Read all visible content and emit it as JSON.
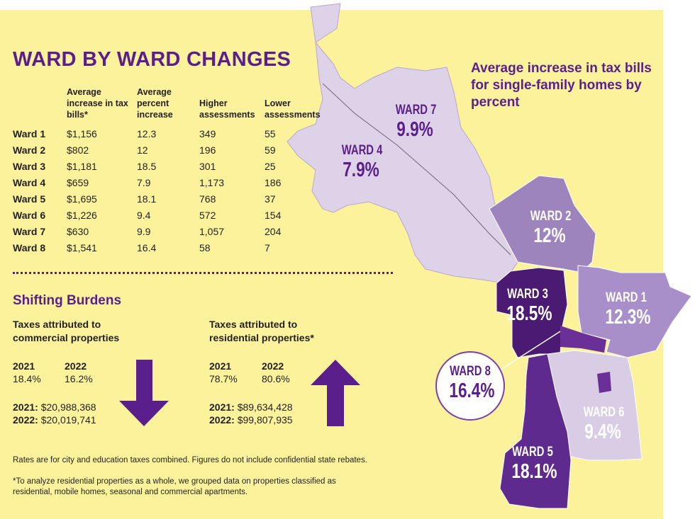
{
  "title": "WARD BY WARD CHANGES",
  "table": {
    "headers": [
      "Average increase in tax bills*",
      "Average percent increase",
      "Higher assessments",
      "Lower assessments"
    ],
    "rows": [
      {
        "ward": "Ward 1",
        "increase": "$1,156",
        "percent": "12.3",
        "higher": "349",
        "lower": "55"
      },
      {
        "ward": "Ward 2",
        "increase": "$802",
        "percent": "12",
        "higher": "196",
        "lower": "59"
      },
      {
        "ward": "Ward 3",
        "increase": "$1,181",
        "percent": "18.5",
        "higher": "301",
        "lower": "25"
      },
      {
        "ward": "Ward 4",
        "increase": "$659",
        "percent": "7.9",
        "higher": "1,173",
        "lower": "186"
      },
      {
        "ward": "Ward 5",
        "increase": "$1,695",
        "percent": "18.1",
        "higher": "768",
        "lower": "37"
      },
      {
        "ward": "Ward 6",
        "increase": "$1,226",
        "percent": "9.4",
        "higher": "572",
        "lower": "154"
      },
      {
        "ward": "Ward 7",
        "increase": "$630",
        "percent": "9.9",
        "higher": "1,057",
        "lower": "204"
      },
      {
        "ward": "Ward 8",
        "increase": "$1,541",
        "percent": "16.4",
        "higher": "58",
        "lower": "7"
      }
    ]
  },
  "burdens": {
    "title": "Shifting Burdens",
    "commercial": {
      "heading": "Taxes attributed to commercial properties",
      "y1": "2021",
      "y2": "2022",
      "p1": "18.4%",
      "p2": "16.2%",
      "t1_label": "2021: ",
      "t1_value": "$20,988,368",
      "t2_label": "2022: ",
      "t2_value": "$20,019,741"
    },
    "residential": {
      "heading": "Taxes attributed to residential properties*",
      "y1": "2021",
      "y2": "2022",
      "p1": "78.7%",
      "p2": "80.6%",
      "t1_label": "2021: ",
      "t1_value": "$89,634,428",
      "t2_label": "2022: ",
      "t2_value": "$99,807,935"
    }
  },
  "notes": [
    "Rates are for city and education taxes combined. Figures do not include confidential state rebates.",
    "*To analyze residential properties as a whole, we grouped data on properties classified as residential, mobile homes, seasonal and commercial apartments."
  ],
  "map": {
    "title": "Average increase in tax bills for single-family homes by percent",
    "wards": [
      {
        "name": "WARD 7",
        "pct": "9.9%"
      },
      {
        "name": "WARD 4",
        "pct": "7.9%"
      },
      {
        "name": "WARD 2",
        "pct": "12%"
      },
      {
        "name": "WARD 3",
        "pct": "18.5%"
      },
      {
        "name": "WARD 1",
        "pct": "12.3%"
      },
      {
        "name": "WARD 8",
        "pct": "16.4%"
      },
      {
        "name": "WARD 6",
        "pct": "9.4%"
      },
      {
        "name": "WARD 5",
        "pct": "18.1%"
      }
    ]
  },
  "colors": {
    "accent_purple": "#5b1f8c",
    "background_yellow": "#fbf29b",
    "ward_lilac": "#ddd2e8",
    "ward_dark": "#4b1a72"
  },
  "icons": [
    "arrow-down-icon",
    "arrow-up-icon"
  ]
}
